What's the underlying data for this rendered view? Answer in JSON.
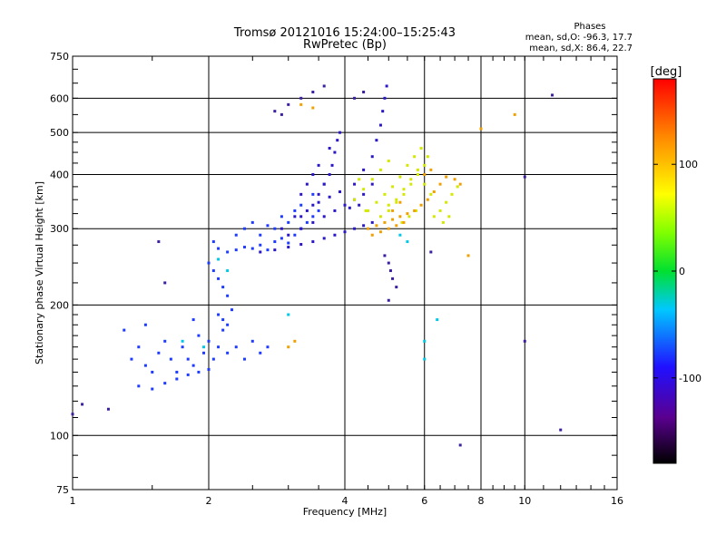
{
  "chart_data": {
    "type": "scatter",
    "title": "Tromsø 20121016 15:24:00–15:25:43",
    "subtitle": "RwPretec (Bp)",
    "xlabel": "Frequency [MHz]",
    "ylabel": "Stationary phase Virtual Height [km]",
    "xscale": "log",
    "yscale": "log",
    "xlim": [
      1,
      16
    ],
    "ylim": [
      75,
      750
    ],
    "x_ticks": [
      1,
      2,
      4,
      6,
      8,
      10,
      16
    ],
    "x_tick_labels": [
      "1",
      "2",
      "4",
      "6",
      "8",
      "10",
      "16"
    ],
    "y_ticks": [
      75,
      100,
      200,
      300,
      400,
      500,
      600,
      750
    ],
    "y_tick_labels": [
      "75",
      "100",
      "200",
      "300",
      "400",
      "500",
      "600",
      "750"
    ],
    "grid": true,
    "stats": {
      "heading": "Phases",
      "line_o": "mean, sd,O: -96.3, 17.7",
      "line_x": "mean, sd,X: 86.4, 22.7"
    },
    "colorbar": {
      "label": "[deg]",
      "range": [
        -180,
        180
      ],
      "ticks": [
        100,
        0,
        -100
      ],
      "tick_labels": [
        "100",
        "0",
        "-100"
      ]
    },
    "series": [
      {
        "color": "#1e3cff",
        "points": [
          [
            1.35,
            150
          ],
          [
            1.4,
            160
          ],
          [
            1.45,
            145
          ],
          [
            1.5,
            140
          ],
          [
            1.55,
            155
          ],
          [
            1.6,
            165
          ],
          [
            1.65,
            150
          ],
          [
            1.7,
            140
          ],
          [
            1.75,
            160
          ],
          [
            1.8,
            150
          ],
          [
            1.85,
            145
          ],
          [
            1.9,
            170
          ],
          [
            1.95,
            155
          ],
          [
            2.0,
            165
          ],
          [
            2.05,
            150
          ],
          [
            2.1,
            160
          ],
          [
            2.15,
            175
          ],
          [
            2.2,
            155
          ],
          [
            2.3,
            160
          ],
          [
            2.4,
            150
          ],
          [
            2.5,
            165
          ],
          [
            2.6,
            155
          ],
          [
            2.7,
            160
          ],
          [
            1.4,
            130
          ],
          [
            1.5,
            128
          ],
          [
            1.6,
            132
          ],
          [
            1.7,
            135
          ],
          [
            1.8,
            138
          ],
          [
            1.9,
            140
          ],
          [
            2.0,
            142
          ],
          [
            2.0,
            250
          ],
          [
            2.05,
            240
          ],
          [
            2.1,
            230
          ],
          [
            2.15,
            220
          ],
          [
            2.2,
            210
          ],
          [
            2.1,
            190
          ],
          [
            2.15,
            185
          ],
          [
            2.2,
            180
          ],
          [
            2.05,
            280
          ],
          [
            2.1,
            270
          ],
          [
            2.2,
            265
          ],
          [
            2.3,
            268
          ],
          [
            2.4,
            272
          ],
          [
            2.5,
            270
          ],
          [
            2.6,
            275
          ],
          [
            2.7,
            268
          ],
          [
            2.8,
            280
          ],
          [
            2.9,
            285
          ],
          [
            3.0,
            278
          ],
          [
            3.1,
            290
          ],
          [
            3.2,
            300
          ],
          [
            3.3,
            310
          ],
          [
            3.4,
            320
          ],
          [
            3.5,
            330
          ],
          [
            2.6,
            290
          ],
          [
            2.8,
            300
          ],
          [
            3.0,
            310
          ],
          [
            3.2,
            340
          ],
          [
            3.4,
            360
          ],
          [
            3.6,
            380
          ],
          [
            2.3,
            290
          ],
          [
            2.4,
            300
          ],
          [
            2.5,
            310
          ],
          [
            2.7,
            305
          ],
          [
            2.9,
            320
          ],
          [
            3.1,
            330
          ],
          [
            1.3,
            175
          ],
          [
            1.45,
            180
          ],
          [
            1.85,
            185
          ],
          [
            2.25,
            195
          ]
        ]
      },
      {
        "color": "#2a18c8",
        "points": [
          [
            2.6,
            265
          ],
          [
            2.8,
            268
          ],
          [
            3.0,
            272
          ],
          [
            3.2,
            276
          ],
          [
            3.4,
            280
          ],
          [
            3.6,
            285
          ],
          [
            3.8,
            290
          ],
          [
            4.0,
            295
          ],
          [
            4.2,
            300
          ],
          [
            4.4,
            305
          ],
          [
            4.6,
            310
          ],
          [
            3.0,
            290
          ],
          [
            3.2,
            300
          ],
          [
            3.4,
            310
          ],
          [
            3.6,
            320
          ],
          [
            3.8,
            330
          ],
          [
            4.0,
            340
          ],
          [
            4.2,
            350
          ],
          [
            4.4,
            360
          ],
          [
            4.6,
            380
          ],
          [
            3.2,
            320
          ],
          [
            3.4,
            340
          ],
          [
            3.5,
            360
          ],
          [
            3.6,
            380
          ],
          [
            3.7,
            400
          ],
          [
            3.75,
            420
          ],
          [
            3.8,
            450
          ],
          [
            3.85,
            480
          ],
          [
            3.9,
            500
          ],
          [
            3.7,
            460
          ],
          [
            4.2,
            380
          ],
          [
            4.4,
            410
          ],
          [
            4.6,
            440
          ],
          [
            4.7,
            480
          ],
          [
            4.8,
            520
          ],
          [
            4.85,
            560
          ],
          [
            4.9,
            600
          ],
          [
            4.95,
            640
          ],
          [
            3.2,
            360
          ],
          [
            3.3,
            380
          ],
          [
            3.4,
            400
          ],
          [
            3.5,
            420
          ],
          [
            2.9,
            300
          ],
          [
            3.1,
            320
          ],
          [
            3.3,
            330
          ],
          [
            3.5,
            345
          ],
          [
            3.7,
            355
          ],
          [
            3.9,
            365
          ],
          [
            4.1,
            335
          ],
          [
            4.3,
            340
          ]
        ]
      },
      {
        "color": "#d4e800",
        "points": [
          [
            4.8,
            320
          ],
          [
            5.0,
            330
          ],
          [
            5.2,
            345
          ],
          [
            5.4,
            360
          ],
          [
            5.6,
            380
          ],
          [
            5.8,
            400
          ],
          [
            6.0,
            420
          ],
          [
            6.1,
            440
          ],
          [
            6.0,
            380
          ],
          [
            6.2,
            360
          ],
          [
            5.0,
            340
          ],
          [
            5.2,
            350
          ],
          [
            5.4,
            370
          ],
          [
            5.6,
            390
          ],
          [
            5.8,
            410
          ],
          [
            4.5,
            330
          ],
          [
            4.7,
            345
          ],
          [
            4.9,
            360
          ],
          [
            5.1,
            375
          ],
          [
            5.3,
            395
          ],
          [
            6.3,
            320
          ],
          [
            6.5,
            330
          ],
          [
            6.7,
            345
          ],
          [
            6.9,
            360
          ],
          [
            7.1,
            375
          ],
          [
            6.6,
            310
          ],
          [
            6.8,
            320
          ],
          [
            5.5,
            420
          ],
          [
            5.7,
            440
          ],
          [
            5.9,
            460
          ],
          [
            4.4,
            370
          ],
          [
            4.6,
            390
          ],
          [
            4.8,
            410
          ],
          [
            5.0,
            430
          ],
          [
            4.2,
            350
          ],
          [
            4.3,
            390
          ],
          [
            4.45,
            330
          ],
          [
            5.35,
            310
          ],
          [
            5.55,
            320
          ],
          [
            5.75,
            330
          ]
        ]
      },
      {
        "color": "#f0a000",
        "points": [
          [
            4.5,
            300
          ],
          [
            4.7,
            305
          ],
          [
            4.9,
            310
          ],
          [
            5.1,
            315
          ],
          [
            5.3,
            320
          ],
          [
            5.5,
            325
          ],
          [
            5.7,
            330
          ],
          [
            5.9,
            340
          ],
          [
            6.1,
            350
          ],
          [
            6.3,
            365
          ],
          [
            6.5,
            380
          ],
          [
            6.7,
            395
          ],
          [
            4.6,
            290
          ],
          [
            4.8,
            295
          ],
          [
            5.0,
            300
          ],
          [
            5.2,
            305
          ],
          [
            5.4,
            310
          ],
          [
            7.0,
            390
          ],
          [
            7.2,
            380
          ],
          [
            8.0,
            510
          ],
          [
            9.5,
            550
          ],
          [
            3.2,
            580
          ],
          [
            3.4,
            570
          ],
          [
            7.5,
            260
          ],
          [
            3.0,
            160
          ],
          [
            3.1,
            165
          ],
          [
            5.1,
            330
          ],
          [
            5.3,
            345
          ],
          [
            6.0,
            400
          ],
          [
            6.2,
            410
          ]
        ]
      },
      {
        "color": "#3c1ea0",
        "points": [
          [
            2.8,
            560
          ],
          [
            2.9,
            550
          ],
          [
            3.0,
            580
          ],
          [
            3.2,
            600
          ],
          [
            3.4,
            620
          ],
          [
            3.6,
            640
          ],
          [
            4.2,
            600
          ],
          [
            4.4,
            620
          ],
          [
            11.5,
            610
          ],
          [
            1.55,
            280
          ],
          [
            1.6,
            225
          ],
          [
            4.9,
            260
          ],
          [
            5.0,
            250
          ],
          [
            5.05,
            240
          ],
          [
            5.1,
            230
          ],
          [
            5.2,
            220
          ],
          [
            6.2,
            265
          ],
          [
            5.0,
            205
          ],
          [
            7.2,
            95
          ],
          [
            10.0,
            165
          ],
          [
            10.0,
            395
          ],
          [
            1.0,
            112
          ],
          [
            1.05,
            118
          ],
          [
            1.2,
            115
          ],
          [
            12.0,
            103
          ]
        ]
      },
      {
        "color": "#00c8e8",
        "points": [
          [
            6.0,
            165
          ],
          [
            6.0,
            150
          ],
          [
            6.4,
            185
          ],
          [
            3.0,
            190
          ],
          [
            5.5,
            280
          ],
          [
            5.3,
            290
          ],
          [
            2.1,
            255
          ],
          [
            2.2,
            240
          ],
          [
            1.75,
            165
          ],
          [
            1.95,
            160
          ]
        ]
      }
    ]
  }
}
